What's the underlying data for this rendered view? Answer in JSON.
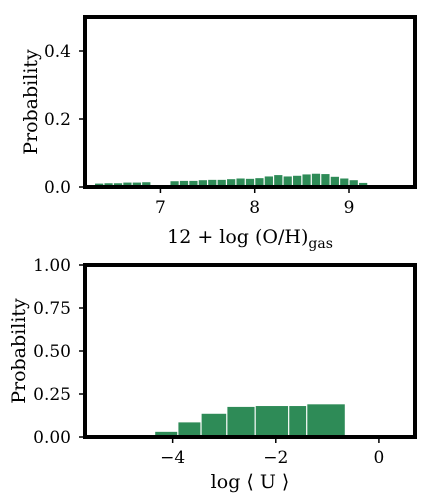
{
  "colors": {
    "bar": "#2e8b57",
    "frame": "#000000",
    "text": "#000000"
  },
  "chart_data": [
    {
      "type": "bar",
      "xlabel": "12 + log (O/H)",
      "xlabel_subscript": "gas",
      "ylabel": "Probability",
      "xlim": [
        6.2,
        9.7
      ],
      "ylim": [
        0,
        0.5
      ],
      "xticks": [
        7,
        8,
        9
      ],
      "yticks": [
        0.0,
        0.2,
        0.4
      ],
      "ytick_labels": [
        "0.0",
        "0.2",
        "0.4"
      ],
      "grid": false,
      "bins": [
        {
          "x0": 6.3,
          "x1": 6.4,
          "value": 0.01
        },
        {
          "x0": 6.4,
          "x1": 6.5,
          "value": 0.011
        },
        {
          "x0": 6.5,
          "x1": 6.6,
          "value": 0.011
        },
        {
          "x0": 6.6,
          "x1": 6.7,
          "value": 0.013
        },
        {
          "x0": 6.7,
          "x1": 6.8,
          "value": 0.013
        },
        {
          "x0": 6.8,
          "x1": 6.9,
          "value": 0.014
        },
        {
          "x0": 6.9,
          "x1": 7.0,
          "value": 0.0
        },
        {
          "x0": 7.0,
          "x1": 7.1,
          "value": 0.0
        },
        {
          "x0": 7.1,
          "x1": 7.2,
          "value": 0.017
        },
        {
          "x0": 7.2,
          "x1": 7.3,
          "value": 0.018
        },
        {
          "x0": 7.3,
          "x1": 7.4,
          "value": 0.018
        },
        {
          "x0": 7.4,
          "x1": 7.5,
          "value": 0.02
        },
        {
          "x0": 7.5,
          "x1": 7.6,
          "value": 0.021
        },
        {
          "x0": 7.6,
          "x1": 7.7,
          "value": 0.021
        },
        {
          "x0": 7.7,
          "x1": 7.8,
          "value": 0.023
        },
        {
          "x0": 7.8,
          "x1": 7.9,
          "value": 0.025
        },
        {
          "x0": 7.9,
          "x1": 8.0,
          "value": 0.024
        },
        {
          "x0": 8.0,
          "x1": 8.1,
          "value": 0.026
        },
        {
          "x0": 8.1,
          "x1": 8.2,
          "value": 0.031
        },
        {
          "x0": 8.2,
          "x1": 8.3,
          "value": 0.035
        },
        {
          "x0": 8.3,
          "x1": 8.4,
          "value": 0.031
        },
        {
          "x0": 8.4,
          "x1": 8.5,
          "value": 0.033
        },
        {
          "x0": 8.5,
          "x1": 8.6,
          "value": 0.037
        },
        {
          "x0": 8.6,
          "x1": 8.7,
          "value": 0.039
        },
        {
          "x0": 8.7,
          "x1": 8.8,
          "value": 0.038
        },
        {
          "x0": 8.8,
          "x1": 8.9,
          "value": 0.03
        },
        {
          "x0": 8.9,
          "x1": 9.0,
          "value": 0.025
        },
        {
          "x0": 9.0,
          "x1": 9.1,
          "value": 0.02
        },
        {
          "x0": 9.1,
          "x1": 9.2,
          "value": 0.012
        }
      ]
    },
    {
      "type": "bar",
      "xlabel": "log ⟨ U ⟩",
      "ylabel": "Probability",
      "xlim": [
        -5.7,
        0.7
      ],
      "ylim": [
        0,
        1.0
      ],
      "xticks": [
        -4,
        -2,
        0
      ],
      "xtick_labels": [
        "−4",
        "−2",
        "0"
      ],
      "yticks": [
        0.0,
        0.25,
        0.5,
        0.75,
        1.0
      ],
      "ytick_labels": [
        "0.00",
        "0.25",
        "0.50",
        "0.75",
        "1.00"
      ],
      "grid": false,
      "bins": [
        {
          "x0": -4.35,
          "x1": -3.9,
          "value": 0.03
        },
        {
          "x0": -3.9,
          "x1": -3.45,
          "value": 0.085
        },
        {
          "x0": -3.45,
          "x1": -2.95,
          "value": 0.135
        },
        {
          "x0": -2.95,
          "x1": -2.4,
          "value": 0.175
        },
        {
          "x0": -2.4,
          "x1": -1.75,
          "value": 0.18
        },
        {
          "x0": -1.75,
          "x1": -1.4,
          "value": 0.18
        },
        {
          "x0": -1.4,
          "x1": -0.65,
          "value": 0.19
        }
      ]
    }
  ]
}
